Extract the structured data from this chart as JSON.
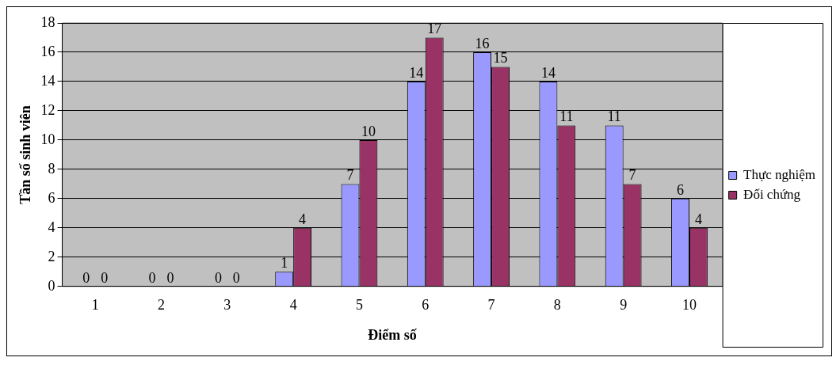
{
  "chart_data": {
    "type": "bar",
    "xlabel": "Điểm số",
    "ylabel": "Tần số sinh viên",
    "categories": [
      "1",
      "2",
      "3",
      "4",
      "5",
      "6",
      "7",
      "8",
      "9",
      "10"
    ],
    "series": [
      {
        "name": "Thực nghiệm",
        "color": "#9999ff",
        "values": [
          0,
          0,
          0,
          1,
          7,
          14,
          16,
          14,
          11,
          6
        ]
      },
      {
        "name": "Đối chứng",
        "color": "#993366",
        "values": [
          0,
          0,
          0,
          4,
          10,
          17,
          15,
          11,
          7,
          4
        ]
      }
    ],
    "ylim": [
      0,
      18
    ],
    "yticks": [
      0,
      2,
      4,
      6,
      8,
      10,
      12,
      14,
      16,
      18
    ],
    "grid": "y",
    "legend": "right",
    "data_labels": true
  }
}
